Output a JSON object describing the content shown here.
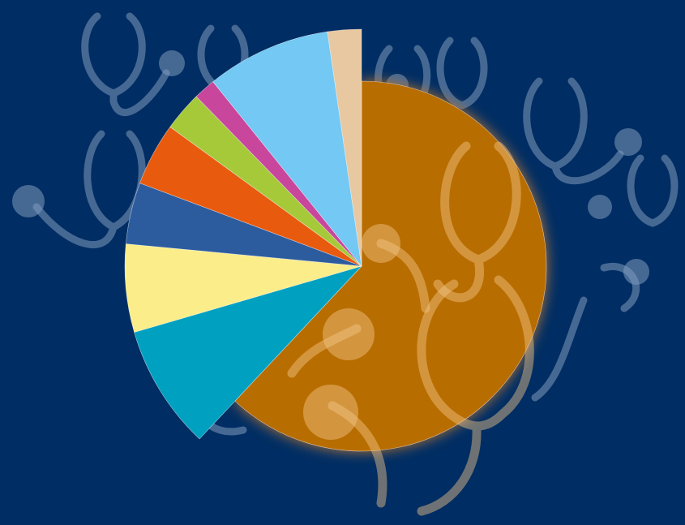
{
  "chart_data": {
    "type": "pie",
    "title": "",
    "exploded_slice": 0,
    "slices": [
      {
        "value": 62.0,
        "color": "#b86d00"
      },
      {
        "value": 8.5,
        "color": "#00a0c0"
      },
      {
        "value": 6.0,
        "color": "#fbee8a"
      },
      {
        "value": 4.2,
        "color": "#2d5c9e"
      },
      {
        "value": 4.3,
        "color": "#e85a0e"
      },
      {
        "value": 2.7,
        "color": "#a6c93a"
      },
      {
        "value": 1.5,
        "color": "#c8469b"
      },
      {
        "value": 8.5,
        "color": "#73c8f4"
      },
      {
        "value": 2.3,
        "color": "#e8c8a0"
      }
    ],
    "background": "#002d63",
    "decoration": "stethoscope-icon"
  }
}
